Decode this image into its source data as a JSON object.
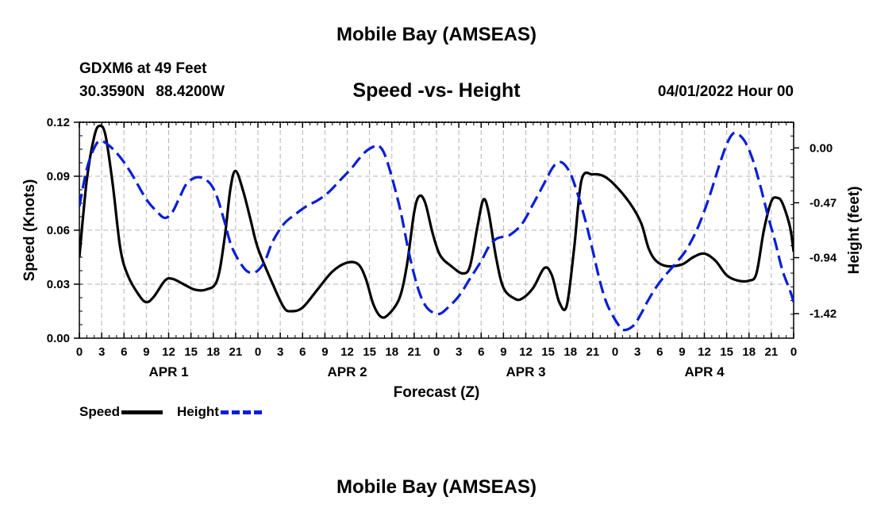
{
  "header": {
    "title": "Mobile Bay (AMSEAS)",
    "station": "GDXM6 at 49 Feet",
    "lat": "30.3590N",
    "lon": "88.4200W",
    "subtitle": "Speed -vs- Height",
    "datetime": "04/01/2022 Hour 00"
  },
  "footer": {
    "title": "Mobile Bay (AMSEAS)"
  },
  "legend": {
    "speed_label": "Speed",
    "height_label": "Height"
  },
  "colors": {
    "speed": "#000000",
    "height": "#0a1ed6",
    "grid": "#b4b4b4"
  },
  "chart_data": {
    "type": "line",
    "title": "Speed -vs- Height",
    "xlabel": "Forecast (Z)",
    "ylabel_left": "Speed (Knots)",
    "ylabel_right": "Height (feet)",
    "x_range": [
      0,
      96
    ],
    "x_ticks": [
      0,
      3,
      6,
      9,
      12,
      15,
      18,
      21,
      24,
      27,
      30,
      33,
      36,
      39,
      42,
      45,
      48,
      51,
      54,
      57,
      60,
      63,
      66,
      69,
      72,
      75,
      78,
      81,
      84,
      87,
      90,
      93,
      96
    ],
    "x_tick_labels": [
      "0",
      "3",
      "6",
      "9",
      "12",
      "15",
      "18",
      "21",
      "0",
      "3",
      "6",
      "9",
      "12",
      "15",
      "18",
      "21",
      "0",
      "3",
      "6",
      "9",
      "12",
      "15",
      "18",
      "21",
      "0",
      "3",
      "6",
      "9",
      "12",
      "15",
      "18",
      "21",
      "0"
    ],
    "day_labels": [
      {
        "label": "APR 1",
        "x": 12
      },
      {
        "label": "APR 2",
        "x": 36
      },
      {
        "label": "APR 3",
        "x": 60
      },
      {
        "label": "APR 4",
        "x": 84
      }
    ],
    "left_axis": {
      "range": [
        0,
        0.12
      ],
      "ticks": [
        0,
        0.03,
        0.06,
        0.09,
        0.12
      ],
      "tick_labels": [
        "0.00",
        "0.03",
        "0.06",
        "0.09",
        "0.12"
      ]
    },
    "right_axis": {
      "range": [
        -1.63,
        0.22
      ],
      "ticks": [
        0.0,
        -0.47,
        -0.94,
        -1.42
      ],
      "tick_labels": [
        "0.00",
        "-0.47",
        "-0.94",
        "-1.42"
      ]
    },
    "grid": true,
    "series": [
      {
        "name": "Speed",
        "axis": "left",
        "style": "solid",
        "points": [
          [
            0,
            0.045
          ],
          [
            1,
            0.088
          ],
          [
            2,
            0.112
          ],
          [
            2.7,
            0.118
          ],
          [
            3.5,
            0.113
          ],
          [
            4.5,
            0.085
          ],
          [
            5.5,
            0.05
          ],
          [
            6.5,
            0.035
          ],
          [
            8,
            0.024
          ],
          [
            9,
            0.02
          ],
          [
            10,
            0.023
          ],
          [
            11.5,
            0.032
          ],
          [
            12.5,
            0.033
          ],
          [
            14,
            0.03
          ],
          [
            15.5,
            0.027
          ],
          [
            17,
            0.027
          ],
          [
            18.5,
            0.032
          ],
          [
            19.5,
            0.055
          ],
          [
            20.3,
            0.083
          ],
          [
            21,
            0.093
          ],
          [
            22,
            0.082
          ],
          [
            23,
            0.066
          ],
          [
            24,
            0.05
          ],
          [
            26,
            0.03
          ],
          [
            27.5,
            0.017
          ],
          [
            28.5,
            0.015
          ],
          [
            30,
            0.017
          ],
          [
            32,
            0.027
          ],
          [
            34,
            0.037
          ],
          [
            36,
            0.042
          ],
          [
            37.5,
            0.041
          ],
          [
            38.5,
            0.033
          ],
          [
            39.5,
            0.019
          ],
          [
            40.5,
            0.012
          ],
          [
            41.5,
            0.013
          ],
          [
            43,
            0.022
          ],
          [
            44,
            0.04
          ],
          [
            45,
            0.07
          ],
          [
            45.7,
            0.079
          ],
          [
            46.5,
            0.075
          ],
          [
            47.5,
            0.058
          ],
          [
            48.5,
            0.046
          ],
          [
            50,
            0.04
          ],
          [
            51.5,
            0.036
          ],
          [
            52.5,
            0.04
          ],
          [
            53.5,
            0.062
          ],
          [
            54.3,
            0.077
          ],
          [
            55,
            0.07
          ],
          [
            56,
            0.045
          ],
          [
            57,
            0.028
          ],
          [
            58.5,
            0.022
          ],
          [
            59.5,
            0.022
          ],
          [
            61,
            0.028
          ],
          [
            62.5,
            0.039
          ],
          [
            63.5,
            0.035
          ],
          [
            64.5,
            0.02
          ],
          [
            65.5,
            0.018
          ],
          [
            66.5,
            0.05
          ],
          [
            67.5,
            0.088
          ],
          [
            69,
            0.091
          ],
          [
            70.5,
            0.09
          ],
          [
            72,
            0.085
          ],
          [
            74,
            0.075
          ],
          [
            75.5,
            0.064
          ],
          [
            76.5,
            0.05
          ],
          [
            77.5,
            0.043
          ],
          [
            79,
            0.04
          ],
          [
            81,
            0.041
          ],
          [
            82.5,
            0.045
          ],
          [
            84,
            0.047
          ],
          [
            85.5,
            0.043
          ],
          [
            87,
            0.035
          ],
          [
            88.5,
            0.032
          ],
          [
            90,
            0.032
          ],
          [
            91,
            0.036
          ],
          [
            92,
            0.06
          ],
          [
            93,
            0.076
          ],
          [
            93.8,
            0.078
          ],
          [
            94.5,
            0.075
          ],
          [
            95.5,
            0.062
          ],
          [
            96,
            0.048
          ]
        ]
      },
      {
        "name": "Height",
        "axis": "right",
        "style": "dashed",
        "points": [
          [
            0,
            -0.5
          ],
          [
            1,
            -0.18
          ],
          [
            2,
            0.0
          ],
          [
            2.8,
            0.06
          ],
          [
            4,
            0.02
          ],
          [
            5.5,
            -0.08
          ],
          [
            7,
            -0.22
          ],
          [
            9,
            -0.44
          ],
          [
            10.5,
            -0.55
          ],
          [
            11.5,
            -0.6
          ],
          [
            12.5,
            -0.55
          ],
          [
            13.5,
            -0.42
          ],
          [
            14.5,
            -0.3
          ],
          [
            16,
            -0.25
          ],
          [
            17.5,
            -0.3
          ],
          [
            18.5,
            -0.42
          ],
          [
            19.5,
            -0.63
          ],
          [
            20.5,
            -0.85
          ],
          [
            22,
            -1.02
          ],
          [
            23,
            -1.07
          ],
          [
            24,
            -1.05
          ],
          [
            25,
            -0.96
          ],
          [
            26,
            -0.8
          ],
          [
            27.5,
            -0.65
          ],
          [
            29,
            -0.57
          ],
          [
            30.5,
            -0.5
          ],
          [
            32,
            -0.45
          ],
          [
            33.5,
            -0.38
          ],
          [
            35,
            -0.28
          ],
          [
            36.5,
            -0.18
          ],
          [
            37.5,
            -0.1
          ],
          [
            38.5,
            -0.03
          ],
          [
            39.5,
            0.01
          ],
          [
            40.2,
            0.02
          ],
          [
            41,
            -0.05
          ],
          [
            42,
            -0.25
          ],
          [
            43.2,
            -0.55
          ],
          [
            44.3,
            -0.9
          ],
          [
            45.5,
            -1.2
          ],
          [
            46.5,
            -1.35
          ],
          [
            47.5,
            -1.41
          ],
          [
            48.5,
            -1.42
          ],
          [
            49.5,
            -1.37
          ],
          [
            51,
            -1.27
          ],
          [
            52.5,
            -1.12
          ],
          [
            54,
            -0.97
          ],
          [
            55,
            -0.85
          ],
          [
            56,
            -0.78
          ],
          [
            57,
            -0.76
          ],
          [
            58,
            -0.74
          ],
          [
            59.5,
            -0.65
          ],
          [
            61,
            -0.48
          ],
          [
            62.5,
            -0.3
          ],
          [
            63.5,
            -0.18
          ],
          [
            64.2,
            -0.13
          ],
          [
            65,
            -0.13
          ],
          [
            66,
            -0.22
          ],
          [
            67,
            -0.4
          ],
          [
            68,
            -0.62
          ],
          [
            69,
            -0.88
          ],
          [
            70,
            -1.15
          ],
          [
            71,
            -1.35
          ],
          [
            72.5,
            -1.52
          ],
          [
            73.3,
            -1.56
          ],
          [
            74.5,
            -1.52
          ],
          [
            75.5,
            -1.42
          ],
          [
            76.5,
            -1.3
          ],
          [
            78,
            -1.15
          ],
          [
            80,
            -1.0
          ],
          [
            81.5,
            -0.88
          ],
          [
            83,
            -0.7
          ],
          [
            84.5,
            -0.45
          ],
          [
            86,
            -0.15
          ],
          [
            87,
            0.03
          ],
          [
            87.8,
            0.12
          ],
          [
            88.5,
            0.12
          ],
          [
            89.5,
            0.05
          ],
          [
            90.5,
            -0.1
          ],
          [
            91.5,
            -0.32
          ],
          [
            92.5,
            -0.57
          ],
          [
            93.5,
            -0.8
          ],
          [
            94.5,
            -1.05
          ],
          [
            95.5,
            -1.22
          ],
          [
            96,
            -1.32
          ]
        ]
      }
    ]
  }
}
